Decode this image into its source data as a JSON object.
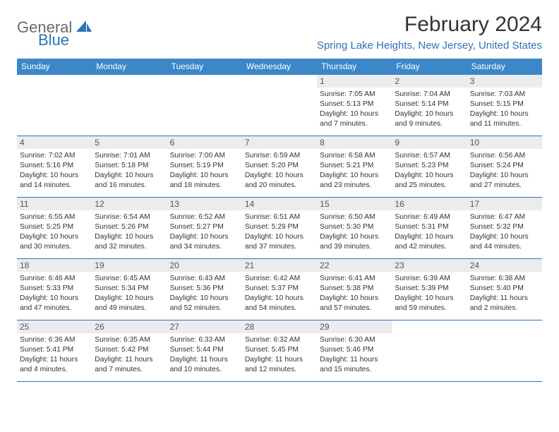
{
  "logo": {
    "text_a": "General",
    "text_b": "Blue"
  },
  "title": "February 2024",
  "location": "Spring Lake Heights, New Jersey, United States",
  "colors": {
    "header_bg": "#3b87c8",
    "accent": "#2f72b8",
    "daynum_bg": "#ececec",
    "text": "#333333",
    "logo_gray": "#6a6a6a"
  },
  "dows": [
    "Sunday",
    "Monday",
    "Tuesday",
    "Wednesday",
    "Thursday",
    "Friday",
    "Saturday"
  ],
  "weeks": [
    [
      null,
      null,
      null,
      null,
      {
        "n": "1",
        "sr": "7:05 AM",
        "ss": "5:13 PM",
        "dl": "10 hours and 7 minutes."
      },
      {
        "n": "2",
        "sr": "7:04 AM",
        "ss": "5:14 PM",
        "dl": "10 hours and 9 minutes."
      },
      {
        "n": "3",
        "sr": "7:03 AM",
        "ss": "5:15 PM",
        "dl": "10 hours and 11 minutes."
      }
    ],
    [
      {
        "n": "4",
        "sr": "7:02 AM",
        "ss": "5:16 PM",
        "dl": "10 hours and 14 minutes."
      },
      {
        "n": "5",
        "sr": "7:01 AM",
        "ss": "5:18 PM",
        "dl": "10 hours and 16 minutes."
      },
      {
        "n": "6",
        "sr": "7:00 AM",
        "ss": "5:19 PM",
        "dl": "10 hours and 18 minutes."
      },
      {
        "n": "7",
        "sr": "6:59 AM",
        "ss": "5:20 PM",
        "dl": "10 hours and 20 minutes."
      },
      {
        "n": "8",
        "sr": "6:58 AM",
        "ss": "5:21 PM",
        "dl": "10 hours and 23 minutes."
      },
      {
        "n": "9",
        "sr": "6:57 AM",
        "ss": "5:23 PM",
        "dl": "10 hours and 25 minutes."
      },
      {
        "n": "10",
        "sr": "6:56 AM",
        "ss": "5:24 PM",
        "dl": "10 hours and 27 minutes."
      }
    ],
    [
      {
        "n": "11",
        "sr": "6:55 AM",
        "ss": "5:25 PM",
        "dl": "10 hours and 30 minutes."
      },
      {
        "n": "12",
        "sr": "6:54 AM",
        "ss": "5:26 PM",
        "dl": "10 hours and 32 minutes."
      },
      {
        "n": "13",
        "sr": "6:52 AM",
        "ss": "5:27 PM",
        "dl": "10 hours and 34 minutes."
      },
      {
        "n": "14",
        "sr": "6:51 AM",
        "ss": "5:29 PM",
        "dl": "10 hours and 37 minutes."
      },
      {
        "n": "15",
        "sr": "6:50 AM",
        "ss": "5:30 PM",
        "dl": "10 hours and 39 minutes."
      },
      {
        "n": "16",
        "sr": "6:49 AM",
        "ss": "5:31 PM",
        "dl": "10 hours and 42 minutes."
      },
      {
        "n": "17",
        "sr": "6:47 AM",
        "ss": "5:32 PM",
        "dl": "10 hours and 44 minutes."
      }
    ],
    [
      {
        "n": "18",
        "sr": "6:46 AM",
        "ss": "5:33 PM",
        "dl": "10 hours and 47 minutes."
      },
      {
        "n": "19",
        "sr": "6:45 AM",
        "ss": "5:34 PM",
        "dl": "10 hours and 49 minutes."
      },
      {
        "n": "20",
        "sr": "6:43 AM",
        "ss": "5:36 PM",
        "dl": "10 hours and 52 minutes."
      },
      {
        "n": "21",
        "sr": "6:42 AM",
        "ss": "5:37 PM",
        "dl": "10 hours and 54 minutes."
      },
      {
        "n": "22",
        "sr": "6:41 AM",
        "ss": "5:38 PM",
        "dl": "10 hours and 57 minutes."
      },
      {
        "n": "23",
        "sr": "6:39 AM",
        "ss": "5:39 PM",
        "dl": "10 hours and 59 minutes."
      },
      {
        "n": "24",
        "sr": "6:38 AM",
        "ss": "5:40 PM",
        "dl": "11 hours and 2 minutes."
      }
    ],
    [
      {
        "n": "25",
        "sr": "6:36 AM",
        "ss": "5:41 PM",
        "dl": "11 hours and 4 minutes."
      },
      {
        "n": "26",
        "sr": "6:35 AM",
        "ss": "5:42 PM",
        "dl": "11 hours and 7 minutes."
      },
      {
        "n": "27",
        "sr": "6:33 AM",
        "ss": "5:44 PM",
        "dl": "11 hours and 10 minutes."
      },
      {
        "n": "28",
        "sr": "6:32 AM",
        "ss": "5:45 PM",
        "dl": "11 hours and 12 minutes."
      },
      {
        "n": "29",
        "sr": "6:30 AM",
        "ss": "5:46 PM",
        "dl": "11 hours and 15 minutes."
      },
      null,
      null
    ]
  ],
  "labels": {
    "sunrise": "Sunrise: ",
    "sunset": "Sunset: ",
    "daylight": "Daylight: "
  }
}
